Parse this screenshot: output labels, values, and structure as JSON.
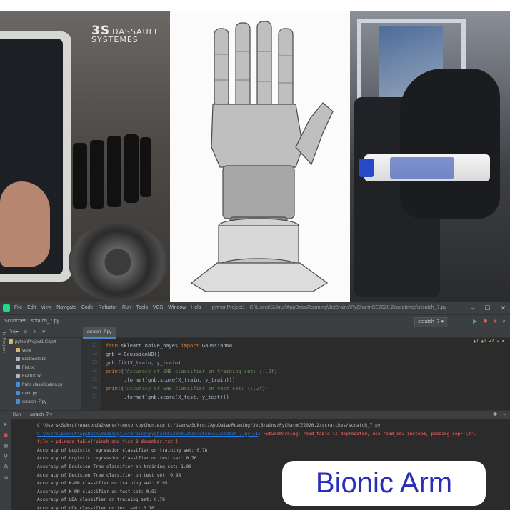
{
  "overlay": {
    "title": "Bionic Arm"
  },
  "photos": {
    "left": {
      "logo_mark": "3S",
      "logo_text": "DASSAULT\nSYSTEMES"
    }
  },
  "ide": {
    "menubar": {
      "items": [
        "File",
        "Edit",
        "View",
        "Navigate",
        "Code",
        "Refactor",
        "Run",
        "Tools",
        "VCS",
        "Window",
        "Help"
      ],
      "window_title": "pythonProject1 - C:\\Users\\Sukrut\\AppData\\Roaming\\JetBrains\\PyCharmCE2020.2\\scratches\\scratch_7.py",
      "controls": [
        "–",
        "☐",
        "✕"
      ]
    },
    "navbar": {
      "breadcrumb": "Scratches  ›  scratch_7.py",
      "run_config": "scratch_7 ▾"
    },
    "sidebar_label": "1: Project",
    "project": {
      "header": "Proj▾",
      "items": [
        {
          "label": "pythonProject1  C:\\pyt",
          "type": "folder",
          "indent": 0
        },
        {
          "label": "venv",
          "type": "folder",
          "indent": 1
        },
        {
          "label": "5datasets.txt",
          "type": "txt",
          "indent": 1
        },
        {
          "label": "Fist.txt",
          "type": "txt",
          "indent": 1
        },
        {
          "label": "Fist100.txt",
          "type": "txt",
          "indent": 1
        },
        {
          "label": "fruits classification.py",
          "type": "py",
          "indent": 1
        },
        {
          "label": "main.py",
          "type": "py",
          "indent": 1
        },
        {
          "label": "scratch_7.py",
          "type": "py",
          "indent": 1
        }
      ]
    },
    "editor": {
      "tab": "scratch_7.py",
      "warnings": "▲7 ▲1 ✔2 ▴ ▾",
      "line_numbers": [
        "71",
        "72",
        "73",
        "74",
        "75",
        "76",
        "77"
      ],
      "lines": [
        {
          "kw1": "from ",
          "a": "sklearn.naive_bayes ",
          "kw2": "import ",
          "b": "GaussianNB",
          "str": "",
          "c": ""
        },
        {
          "kw1": "",
          "a": "gnb = GaussianNB()",
          "kw2": "",
          "b": "",
          "str": "",
          "c": ""
        },
        {
          "kw1": "",
          "a": "gnb.fit(X_train, y_train)",
          "kw2": "",
          "b": "",
          "str": "",
          "c": ""
        },
        {
          "kw1": "print",
          "a": "(",
          "kw2": "",
          "b": "",
          "str": "'Accuracy of GNB classifier on training set: {:.2f}'",
          "c": ""
        },
        {
          "kw1": "",
          "a": "      .format(gnb.score(X_train, y_train)))",
          "kw2": "",
          "b": "",
          "str": "",
          "c": ""
        },
        {
          "kw1": "print",
          "a": "(",
          "kw2": "",
          "b": "",
          "str": "'Accuracy of GNB classifier on test set: {:.2f}'",
          "c": ""
        },
        {
          "kw1": "",
          "a": "      .format(gnb.score(X_test, y_test)))",
          "kw2": "",
          "b": "",
          "str": "",
          "c": ""
        }
      ]
    },
    "run": {
      "label": "Run:",
      "tab": "scratch_7 ×",
      "console": [
        {
          "text": "C:\\Users\\Sukrut\\Anaconda2\\envs\\tensor\\python.exe C:/Users/Sukrut/AppData/Roaming/JetBrains/PyCharmCE2020.2/scratches/scratch_7.py",
          "kind": "plain"
        },
        {
          "text": "C:\\Users\\Sukrut\\AppData\\Roaming\\JetBrains\\PyCharmCE2020.2\\scratches\\scratch_7.py:11",
          "kind": "link",
          "suffix": ": FutureWarning: read_table is deprecated, use read_csv instead, passing sep='\\t'."
        },
        {
          "text": "  file = pd.read_table('pinch and fist 8 december.txt')",
          "kind": "err"
        },
        {
          "text": "Accuracy of Logistic regression classifier on training set: 0.78",
          "kind": "plain"
        },
        {
          "text": "Accuracy of Logistic regression classifier on test set: 0.76",
          "kind": "plain"
        },
        {
          "text": "Accuracy of Decision Tree classifier on training set: 1.00",
          "kind": "plain"
        },
        {
          "text": "Accuracy of Decision Tree classifier on test set: 0.98",
          "kind": "plain"
        },
        {
          "text": "Accuracy of K-NN classifier on training set: 0.95",
          "kind": "plain"
        },
        {
          "text": "Accuracy of K-NN classifier on test set: 0.93",
          "kind": "plain"
        },
        {
          "text": "Accuracy of LDA classifier on training set: 0.78",
          "kind": "plain"
        },
        {
          "text": "Accuracy of LDA classifier on test set: 0.76",
          "kind": "plain"
        }
      ]
    }
  }
}
